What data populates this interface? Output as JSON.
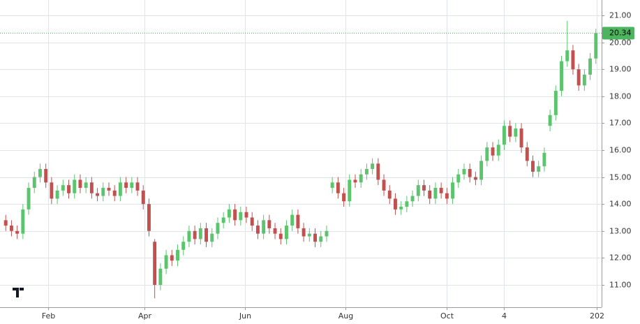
{
  "chart_data": {
    "type": "candlestick",
    "up_color": "#5bc46d",
    "down_color": "#c2504f",
    "last_price": 20.34,
    "last_price_color": "#4cb35e",
    "grid": true,
    "open": [
      13.4,
      13.2,
      13.0,
      12.9,
      13.8,
      14.6,
      15.0,
      15.3,
      14.8,
      14.2,
      14.5,
      14.7,
      14.4,
      14.9,
      14.6,
      14.8,
      14.4,
      14.3,
      14.6,
      14.5,
      14.3,
      14.8,
      14.6,
      14.8,
      14.5,
      14.0,
      12.6,
      11.0,
      11.6,
      12.1,
      11.9,
      12.3,
      12.6,
      13.0,
      12.7,
      13.1,
      12.6,
      12.9,
      13.3,
      13.5,
      13.8,
      13.4,
      13.7,
      13.5,
      13.2,
      12.9,
      13.4,
      13.1,
      12.9,
      12.7,
      13.2,
      13.6,
      13.1,
      12.8,
      12.9,
      12.6,
      12.8,
      14.6,
      14.8,
      14.4,
      14.1,
      14.9,
      14.8,
      15.1,
      15.3,
      15.5,
      14.9,
      14.5,
      14.2,
      13.8,
      13.9,
      14.1,
      14.3,
      14.7,
      14.5,
      14.2,
      14.6,
      14.4,
      14.2,
      14.8,
      15.1,
      15.3,
      15.0,
      14.9,
      15.6,
      16.1,
      15.8,
      16.2,
      16.9,
      16.5,
      16.8,
      16.1,
      15.6,
      15.2,
      15.4,
      16.9,
      17.3,
      18.2,
      19.3,
      19.7,
      19.0,
      18.4,
      18.8,
      19.4
    ],
    "high": [
      13.6,
      13.4,
      13.2,
      14.0,
      14.8,
      15.2,
      15.5,
      15.5,
      15.0,
      14.7,
      14.9,
      14.9,
      15.1,
      15.1,
      15.0,
      15.0,
      14.6,
      14.8,
      14.8,
      14.7,
      15.0,
      15.0,
      15.0,
      15.0,
      14.7,
      14.2,
      12.7,
      11.8,
      12.3,
      12.3,
      12.5,
      12.8,
      13.2,
      13.2,
      13.3,
      13.3,
      13.1,
      13.5,
      13.7,
      14.0,
      14.0,
      13.9,
      13.9,
      13.7,
      13.4,
      13.6,
      13.6,
      13.3,
      13.1,
      13.4,
      13.8,
      13.8,
      13.3,
      13.1,
      13.1,
      13.0,
      13.2,
      15.0,
      15.0,
      14.6,
      15.1,
      15.1,
      15.3,
      15.5,
      15.7,
      15.7,
      15.1,
      14.7,
      14.4,
      14.1,
      14.3,
      14.5,
      14.9,
      14.9,
      14.7,
      14.8,
      14.8,
      14.6,
      15.0,
      15.3,
      15.5,
      15.5,
      15.2,
      15.8,
      16.3,
      16.3,
      16.4,
      17.1,
      17.1,
      17.0,
      17.0,
      16.3,
      15.8,
      15.6,
      16.1,
      17.5,
      18.4,
      19.5,
      20.8,
      19.9,
      19.2,
      19.0,
      19.6,
      20.5
    ],
    "low": [
      13.0,
      12.8,
      12.7,
      12.7,
      13.6,
      14.4,
      14.8,
      14.6,
      14.0,
      14.0,
      14.3,
      14.2,
      14.2,
      14.4,
      14.4,
      14.2,
      14.1,
      14.1,
      14.3,
      14.1,
      14.1,
      14.4,
      14.4,
      14.3,
      13.8,
      12.8,
      10.5,
      10.8,
      11.4,
      11.7,
      11.7,
      12.1,
      12.4,
      12.5,
      12.5,
      12.4,
      12.4,
      12.7,
      13.1,
      13.3,
      13.2,
      13.2,
      13.3,
      13.0,
      12.7,
      12.7,
      12.9,
      12.7,
      12.5,
      12.5,
      13.0,
      12.9,
      12.6,
      12.6,
      12.4,
      12.4,
      12.6,
      14.4,
      14.2,
      13.9,
      13.9,
      14.6,
      14.6,
      14.9,
      15.1,
      14.7,
      14.3,
      14.0,
      13.6,
      13.6,
      13.7,
      13.9,
      14.1,
      14.3,
      14.0,
      14.0,
      14.2,
      14.0,
      14.0,
      14.6,
      14.9,
      14.8,
      14.7,
      14.7,
      15.4,
      15.6,
      15.6,
      16.0,
      16.3,
      16.3,
      15.9,
      15.4,
      15.0,
      15.0,
      15.2,
      16.7,
      17.1,
      18.0,
      19.1,
      18.8,
      18.2,
      18.2,
      18.6,
      19.2
    ],
    "close": [
      13.2,
      13.0,
      12.9,
      13.8,
      14.6,
      15.0,
      15.3,
      14.8,
      14.2,
      14.5,
      14.7,
      14.4,
      14.9,
      14.6,
      14.8,
      14.4,
      14.3,
      14.6,
      14.5,
      14.3,
      14.8,
      14.6,
      14.8,
      14.5,
      14.0,
      13.0,
      11.0,
      11.6,
      12.1,
      11.9,
      12.3,
      12.6,
      13.0,
      12.7,
      13.1,
      12.6,
      12.9,
      13.3,
      13.5,
      13.8,
      13.4,
      13.7,
      13.5,
      13.2,
      12.9,
      13.4,
      13.1,
      12.9,
      12.7,
      13.2,
      13.6,
      13.1,
      12.8,
      12.9,
      12.6,
      12.8,
      13.0,
      14.8,
      14.4,
      14.1,
      14.9,
      14.8,
      15.1,
      15.3,
      15.5,
      14.9,
      14.5,
      14.2,
      13.8,
      13.9,
      14.1,
      14.3,
      14.7,
      14.5,
      14.2,
      14.6,
      14.4,
      14.2,
      14.8,
      15.1,
      15.3,
      15.0,
      14.9,
      15.6,
      16.1,
      15.8,
      16.2,
      16.9,
      16.5,
      16.8,
      16.1,
      15.6,
      15.2,
      15.4,
      15.9,
      17.3,
      18.2,
      19.3,
      19.7,
      19.0,
      18.4,
      18.8,
      19.4,
      20.34
    ],
    "xlim": [
      -1,
      104
    ],
    "xticks": [
      {
        "value": 7.4,
        "label": "Feb"
      },
      {
        "value": 24.2,
        "label": "Apr"
      },
      {
        "value": 41.8,
        "label": "Jun"
      },
      {
        "value": 59.3,
        "label": "Aug"
      },
      {
        "value": 77,
        "label": "Oct"
      },
      {
        "value": 87,
        "label": "4"
      },
      {
        "value": 103.2,
        "label": "202"
      }
    ],
    "ylim": [
      10.17,
      21.57
    ],
    "yticks": [
      {
        "value": 11,
        "label": "11.00"
      },
      {
        "value": 12,
        "label": "12.00"
      },
      {
        "value": 13,
        "label": "13.00"
      },
      {
        "value": 14,
        "label": "14.00"
      },
      {
        "value": 15,
        "label": "15.00"
      },
      {
        "value": 16,
        "label": "16.00"
      },
      {
        "value": 17,
        "label": "17.00"
      },
      {
        "value": 18,
        "label": "18.00"
      },
      {
        "value": 19,
        "label": "19.00"
      },
      {
        "value": 20,
        "label": "20.00"
      },
      {
        "value": 21,
        "label": "21.00"
      }
    ]
  }
}
